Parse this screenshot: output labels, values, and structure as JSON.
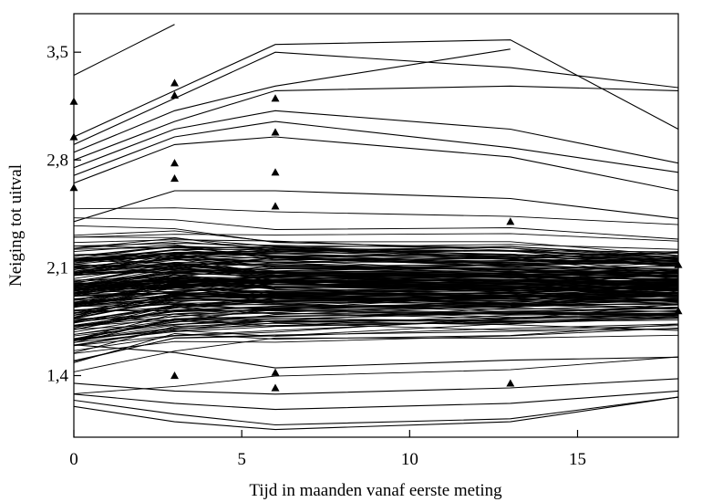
{
  "chart_data": {
    "type": "line",
    "title": "",
    "xlabel": "Tijd in maanden vanaf eerste meting",
    "ylabel": "Neiging tot uitval",
    "xlim": [
      0,
      18
    ],
    "ylim": [
      1.0,
      3.75
    ],
    "x_ticks": [
      0,
      5,
      10,
      15
    ],
    "x_tick_labels": [
      "0",
      "5",
      "10",
      "15"
    ],
    "y_ticks": [
      1.4,
      2.1,
      2.8,
      3.5
    ],
    "y_tick_labels": [
      "1,4",
      "2,1",
      "2,8",
      "3,5"
    ],
    "grid": false,
    "legend": "none",
    "measurement_times": [
      0,
      3,
      6,
      13,
      18
    ],
    "line_color": "#000000",
    "series_note_count": 200,
    "series": [
      {
        "x": [
          0,
          3
        ],
        "values": [
          3.35,
          3.68
        ]
      },
      {
        "x": [
          0,
          3,
          6,
          13,
          18
        ],
        "values": [
          2.95,
          3.25,
          3.55,
          3.58,
          3.0
        ]
      },
      {
        "x": [
          0,
          3,
          6,
          13,
          18
        ],
        "values": [
          2.9,
          3.2,
          3.5,
          3.4,
          3.27
        ]
      },
      {
        "x": [
          0,
          3,
          6,
          13
        ],
        "values": [
          2.85,
          3.12,
          3.28,
          3.52
        ]
      },
      {
        "x": [
          0,
          3,
          6,
          13,
          18
        ],
        "values": [
          2.8,
          3.05,
          3.25,
          3.28,
          3.25
        ]
      },
      {
        "x": [
          0,
          3,
          6,
          13,
          18
        ],
        "values": [
          2.75,
          3.0,
          3.12,
          3.0,
          2.78
        ]
      },
      {
        "x": [
          0,
          3,
          6,
          13,
          18
        ],
        "values": [
          2.7,
          2.95,
          3.05,
          2.88,
          2.72
        ]
      },
      {
        "x": [
          0,
          3,
          6,
          13,
          18
        ],
        "values": [
          2.65,
          2.9,
          2.95,
          2.82,
          2.6
        ]
      },
      {
        "x": [
          0,
          3,
          6,
          13,
          18
        ],
        "values": [
          2.4,
          2.6,
          2.6,
          2.55,
          2.42
        ]
      },
      {
        "x": [
          0,
          3,
          6,
          13,
          18
        ],
        "values": [
          1.6,
          1.55,
          1.45,
          1.5,
          1.52
        ]
      },
      {
        "x": [
          0,
          3,
          6,
          13,
          18
        ],
        "values": [
          1.35,
          1.3,
          1.28,
          1.32,
          1.38
        ]
      },
      {
        "x": [
          0,
          3,
          6,
          13,
          18
        ],
        "values": [
          1.28,
          1.22,
          1.18,
          1.22,
          1.3
        ]
      },
      {
        "x": [
          0,
          3,
          6,
          13,
          18
        ],
        "values": [
          1.24,
          1.15,
          1.08,
          1.12,
          1.26
        ]
      },
      {
        "x": [
          0,
          3,
          6,
          13,
          18
        ],
        "values": [
          1.2,
          1.1,
          1.05,
          1.1,
          1.26
        ]
      }
    ],
    "markers": [
      {
        "x": 0,
        "y": 3.18
      },
      {
        "x": 0,
        "y": 2.95
      },
      {
        "x": 0,
        "y": 2.62
      },
      {
        "x": 3,
        "y": 3.3
      },
      {
        "x": 3,
        "y": 3.22
      },
      {
        "x": 3,
        "y": 2.78
      },
      {
        "x": 3,
        "y": 2.68
      },
      {
        "x": 6,
        "y": 3.2
      },
      {
        "x": 6,
        "y": 2.98
      },
      {
        "x": 6,
        "y": 2.72
      },
      {
        "x": 6,
        "y": 2.5
      },
      {
        "x": 6,
        "y": 1.42
      },
      {
        "x": 6,
        "y": 1.32
      },
      {
        "x": 3,
        "y": 1.4
      },
      {
        "x": 13,
        "y": 2.4
      },
      {
        "x": 13,
        "y": 1.35
      },
      {
        "x": 18,
        "y": 2.12
      },
      {
        "x": 18,
        "y": 1.82
      }
    ]
  }
}
